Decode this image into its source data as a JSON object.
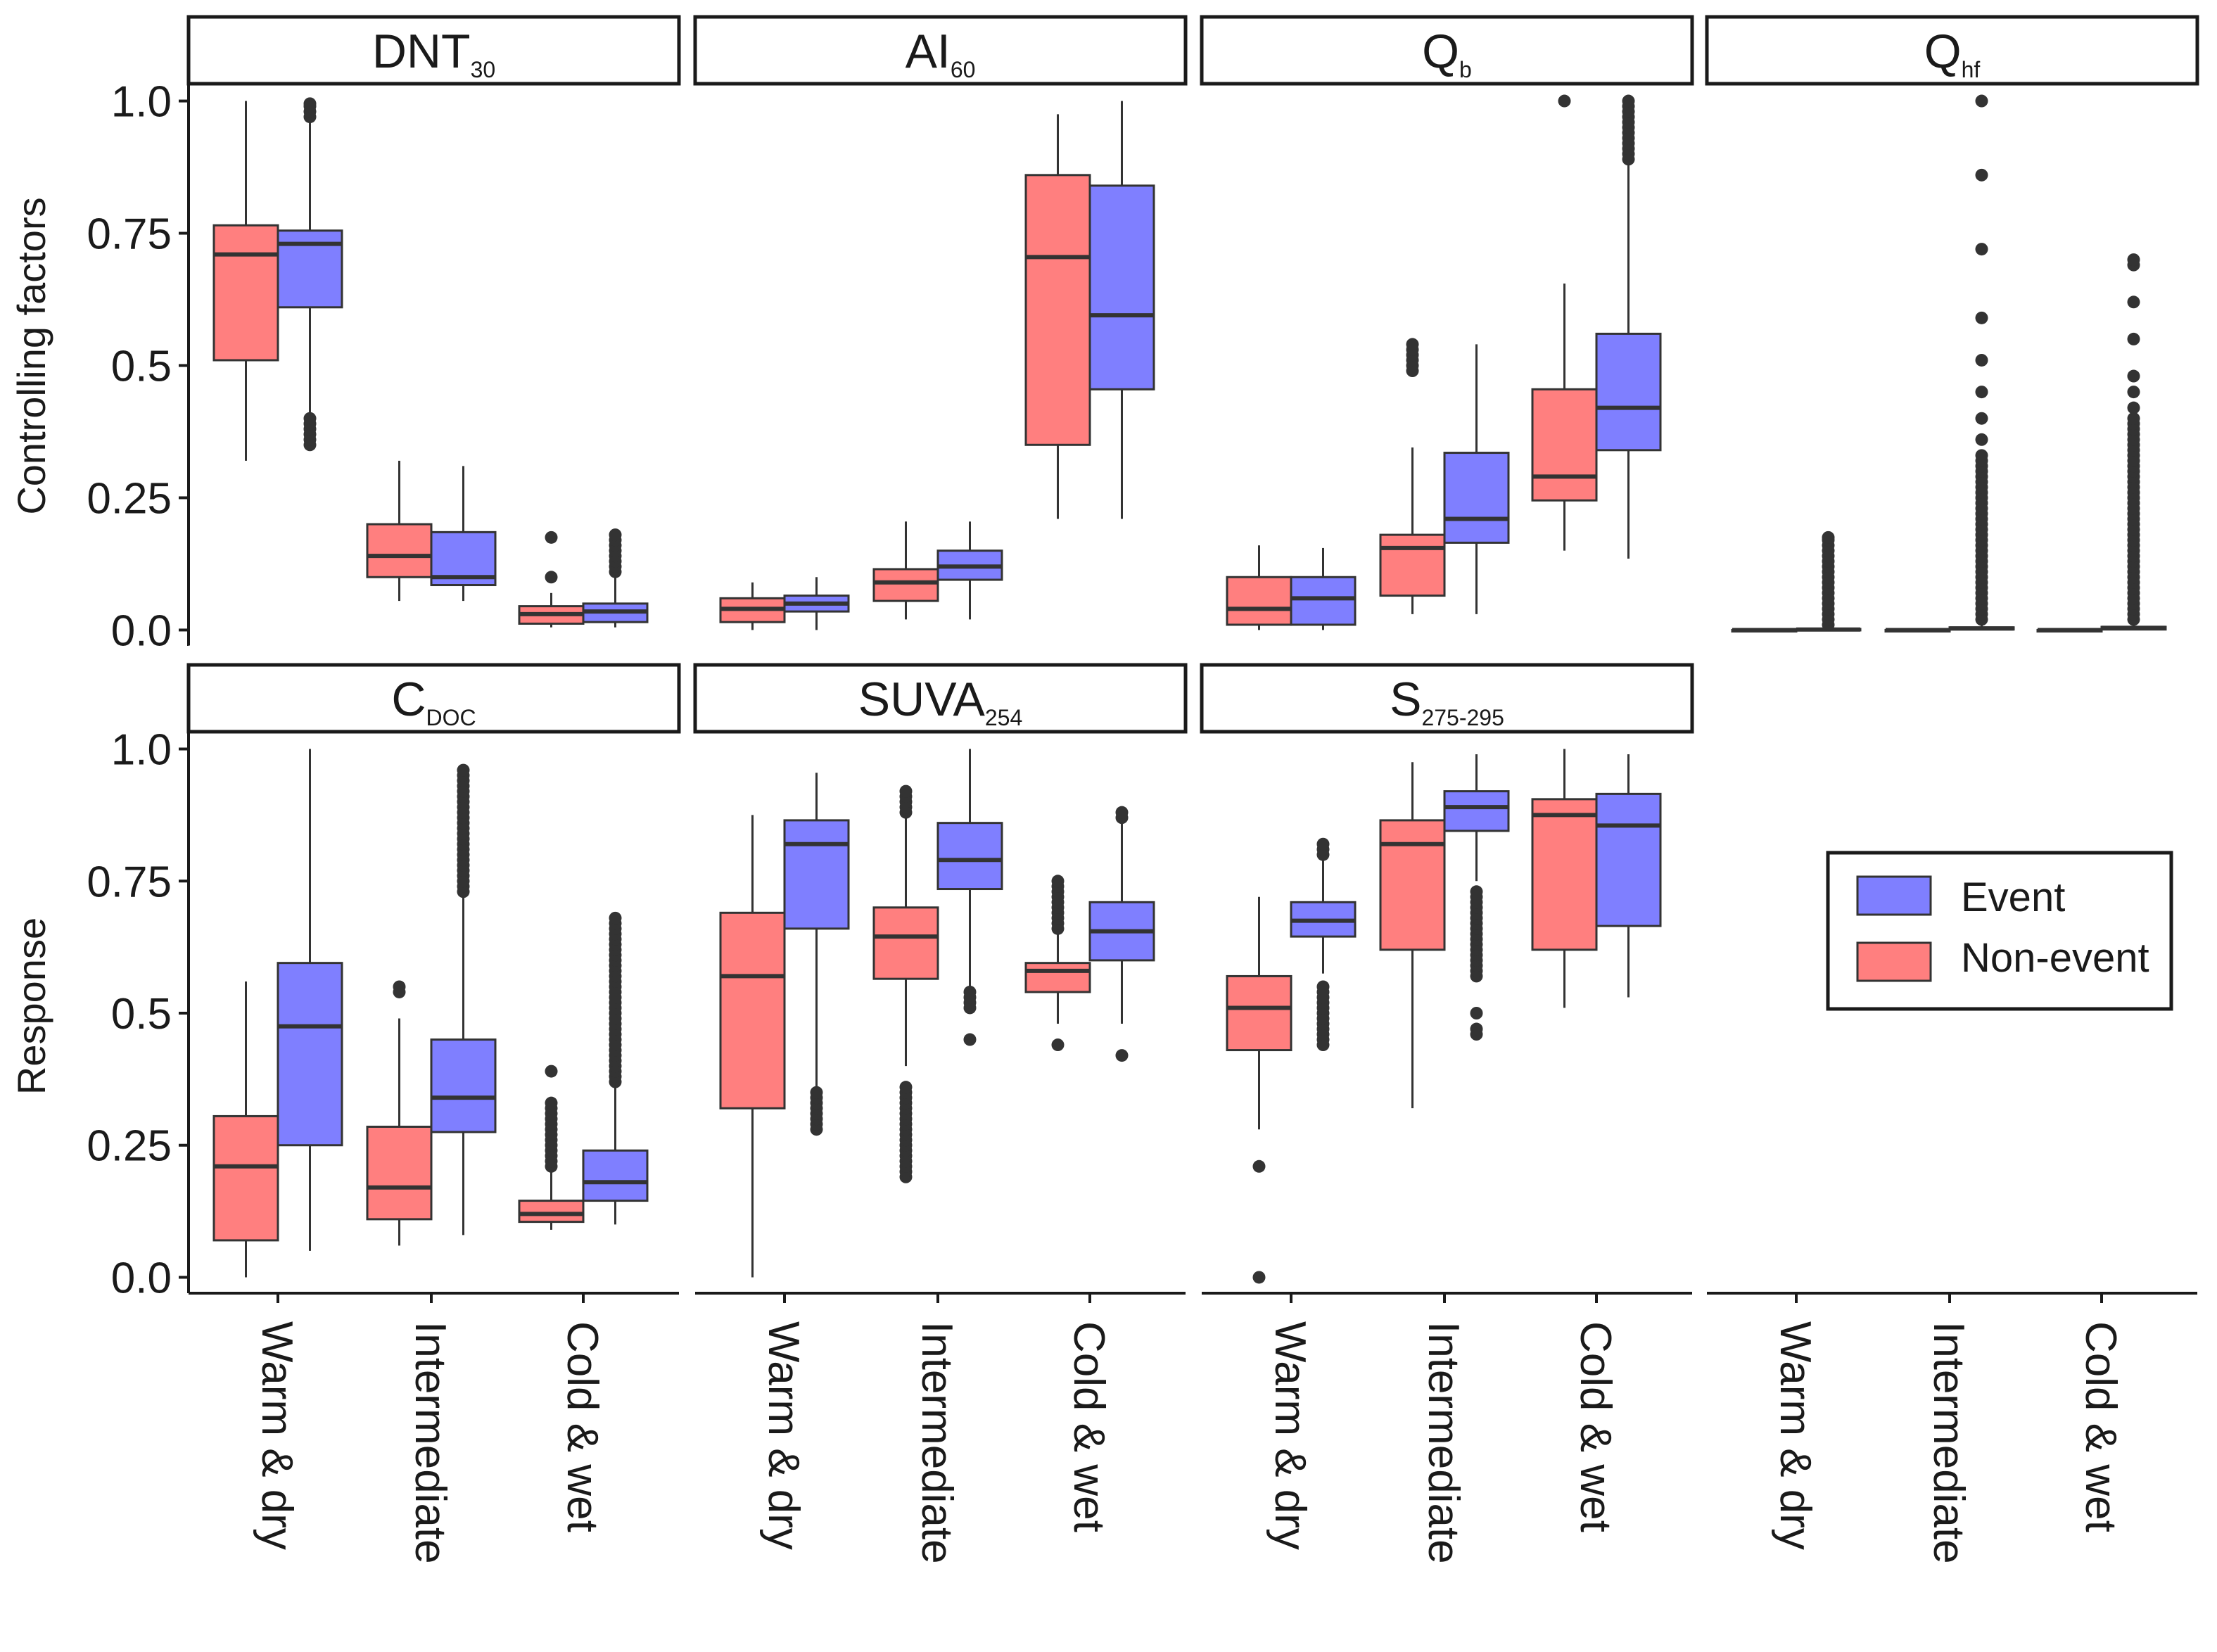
{
  "figure": {
    "row_labels": [
      "Controlling factors",
      "Response"
    ],
    "legend": [
      {
        "label": "Event",
        "color": "#7f7fff"
      },
      {
        "label": "Non-event",
        "color": "#ff7f7f"
      }
    ]
  },
  "chart_data": {
    "type": "box",
    "categories": [
      "Warm & dry",
      "Intermediate",
      "Cold & wet"
    ],
    "y_ticks": [
      "0.0",
      "0.25",
      "0.5",
      "0.75",
      "1.0"
    ],
    "ylim": [
      -0.03,
      1.03
    ],
    "series_colors": {
      "Non-event": "#ff7f7f",
      "Event": "#7f7fff"
    },
    "panels": [
      {
        "id": "dnt30",
        "strip_main": "DNT",
        "strip_sub": "30",
        "row": 0,
        "col": 0,
        "boxes": [
          {
            "category": "Warm & dry",
            "series": "Non-event",
            "min": 0.32,
            "q1": 0.51,
            "median": 0.71,
            "q3": 0.765,
            "max": 1.0,
            "outliers": []
          },
          {
            "category": "Warm & dry",
            "series": "Event",
            "min": 0.35,
            "q1": 0.61,
            "median": 0.73,
            "q3": 0.755,
            "max": 0.995,
            "outliers": [
              0.35,
              0.36,
              0.37,
              0.38,
              0.39,
              0.4,
              0.97,
              0.98,
              0.99,
              0.995
            ]
          },
          {
            "category": "Intermediate",
            "series": "Non-event",
            "min": 0.055,
            "q1": 0.1,
            "median": 0.14,
            "q3": 0.2,
            "max": 0.32,
            "outliers": []
          },
          {
            "category": "Intermediate",
            "series": "Event",
            "min": 0.055,
            "q1": 0.085,
            "median": 0.1,
            "q3": 0.185,
            "max": 0.31,
            "outliers": []
          },
          {
            "category": "Cold & wet",
            "series": "Non-event",
            "min": 0.005,
            "q1": 0.012,
            "median": 0.03,
            "q3": 0.045,
            "max": 0.07,
            "outliers": [
              0.1,
              0.175
            ]
          },
          {
            "category": "Cold & wet",
            "series": "Event",
            "min": 0.005,
            "q1": 0.015,
            "median": 0.035,
            "q3": 0.05,
            "max": 0.1,
            "outliers": [
              0.11,
              0.12,
              0.13,
              0.14,
              0.15,
              0.16,
              0.17,
              0.18
            ]
          }
        ]
      },
      {
        "id": "ai60",
        "strip_main": "AI",
        "strip_sub": "60",
        "row": 0,
        "col": 1,
        "boxes": [
          {
            "category": "Warm & dry",
            "series": "Non-event",
            "min": 0.0,
            "q1": 0.015,
            "median": 0.04,
            "q3": 0.06,
            "max": 0.09,
            "outliers": []
          },
          {
            "category": "Warm & dry",
            "series": "Event",
            "min": 0.0,
            "q1": 0.035,
            "median": 0.05,
            "q3": 0.065,
            "max": 0.1,
            "outliers": []
          },
          {
            "category": "Intermediate",
            "series": "Non-event",
            "min": 0.02,
            "q1": 0.055,
            "median": 0.09,
            "q3": 0.115,
            "max": 0.205,
            "outliers": []
          },
          {
            "category": "Intermediate",
            "series": "Event",
            "min": 0.02,
            "q1": 0.095,
            "median": 0.12,
            "q3": 0.15,
            "max": 0.205,
            "outliers": []
          },
          {
            "category": "Cold & wet",
            "series": "Non-event",
            "min": 0.21,
            "q1": 0.35,
            "median": 0.705,
            "q3": 0.86,
            "max": 0.975,
            "outliers": []
          },
          {
            "category": "Cold & wet",
            "series": "Event",
            "min": 0.21,
            "q1": 0.455,
            "median": 0.595,
            "q3": 0.84,
            "max": 1.0,
            "outliers": []
          }
        ]
      },
      {
        "id": "qb",
        "strip_main": "Q",
        "strip_sub": "b",
        "row": 0,
        "col": 2,
        "boxes": [
          {
            "category": "Warm & dry",
            "series": "Non-event",
            "min": 0.0,
            "q1": 0.01,
            "median": 0.04,
            "q3": 0.1,
            "max": 0.16,
            "outliers": []
          },
          {
            "category": "Warm & dry",
            "series": "Event",
            "min": 0.0,
            "q1": 0.01,
            "median": 0.06,
            "q3": 0.1,
            "max": 0.155,
            "outliers": []
          },
          {
            "category": "Intermediate",
            "series": "Non-event",
            "min": 0.03,
            "q1": 0.065,
            "median": 0.155,
            "q3": 0.18,
            "max": 0.345,
            "outliers": [
              0.49,
              0.5,
              0.51,
              0.52,
              0.53,
              0.54
            ]
          },
          {
            "category": "Intermediate",
            "series": "Event",
            "min": 0.03,
            "q1": 0.165,
            "median": 0.21,
            "q3": 0.335,
            "max": 0.54,
            "outliers": []
          },
          {
            "category": "Cold & wet",
            "series": "Non-event",
            "min": 0.15,
            "q1": 0.245,
            "median": 0.29,
            "q3": 0.455,
            "max": 0.655,
            "outliers": [
              1.0
            ]
          },
          {
            "category": "Cold & wet",
            "series": "Event",
            "min": 0.135,
            "q1": 0.34,
            "median": 0.42,
            "q3": 0.56,
            "max": 0.88,
            "outliers": [
              0.89,
              0.9,
              0.91,
              0.92,
              0.93,
              0.94,
              0.95,
              0.96,
              0.97,
              0.98,
              0.99,
              1.0
            ]
          }
        ]
      },
      {
        "id": "qhf",
        "strip_main": "Q",
        "strip_sub": "hf",
        "row": 0,
        "col": 3,
        "boxes": [
          {
            "category": "Warm & dry",
            "series": "Non-event",
            "min": 0.0,
            "q1": 0.0,
            "median": 0.0,
            "q3": 0.0,
            "max": 0.0,
            "outliers": []
          },
          {
            "category": "Warm & dry",
            "series": "Event",
            "min": 0.0,
            "q1": 0.0,
            "median": 0.001,
            "q3": 0.002,
            "max": 0.005,
            "outliers": [
              0.01,
              0.02,
              0.03,
              0.04,
              0.05,
              0.06,
              0.07,
              0.08,
              0.09,
              0.1,
              0.11,
              0.12,
              0.13,
              0.14,
              0.15,
              0.16,
              0.17,
              0.175
            ]
          },
          {
            "category": "Intermediate",
            "series": "Non-event",
            "min": 0.0,
            "q1": 0.0,
            "median": 0.0,
            "q3": 0.0,
            "max": 0.0,
            "outliers": []
          },
          {
            "category": "Intermediate",
            "series": "Event",
            "min": 0.0,
            "q1": 0.001,
            "median": 0.003,
            "q3": 0.005,
            "max": 0.01,
            "outliers": [
              0.02,
              0.03,
              0.04,
              0.05,
              0.06,
              0.07,
              0.08,
              0.09,
              0.1,
              0.11,
              0.12,
              0.13,
              0.14,
              0.15,
              0.16,
              0.17,
              0.18,
              0.19,
              0.2,
              0.21,
              0.22,
              0.23,
              0.24,
              0.25,
              0.26,
              0.27,
              0.28,
              0.29,
              0.3,
              0.31,
              0.32,
              0.33,
              0.36,
              0.4,
              0.45,
              0.51,
              0.59,
              0.72,
              0.86,
              1.0
            ]
          },
          {
            "category": "Cold & wet",
            "series": "Non-event",
            "min": 0.0,
            "q1": 0.0,
            "median": 0.0,
            "q3": 0.0,
            "max": 0.0,
            "outliers": []
          },
          {
            "category": "Cold & wet",
            "series": "Event",
            "min": 0.0,
            "q1": 0.001,
            "median": 0.004,
            "q3": 0.006,
            "max": 0.012,
            "outliers": [
              0.02,
              0.03,
              0.04,
              0.05,
              0.06,
              0.07,
              0.08,
              0.09,
              0.1,
              0.11,
              0.12,
              0.13,
              0.14,
              0.15,
              0.16,
              0.17,
              0.18,
              0.19,
              0.2,
              0.21,
              0.22,
              0.23,
              0.24,
              0.25,
              0.26,
              0.27,
              0.28,
              0.29,
              0.3,
              0.31,
              0.32,
              0.33,
              0.34,
              0.35,
              0.36,
              0.37,
              0.38,
              0.39,
              0.4,
              0.42,
              0.45,
              0.48,
              0.55,
              0.62,
              0.69,
              0.7
            ]
          }
        ]
      },
      {
        "id": "cdoc",
        "strip_main": "C",
        "strip_sub": "DOC",
        "row": 1,
        "col": 0,
        "boxes": [
          {
            "category": "Warm & dry",
            "series": "Non-event",
            "min": 0.0,
            "q1": 0.07,
            "median": 0.21,
            "q3": 0.305,
            "max": 0.56,
            "outliers": []
          },
          {
            "category": "Warm & dry",
            "series": "Event",
            "min": 0.05,
            "q1": 0.25,
            "median": 0.475,
            "q3": 0.595,
            "max": 1.0,
            "outliers": []
          },
          {
            "category": "Intermediate",
            "series": "Non-event",
            "min": 0.06,
            "q1": 0.11,
            "median": 0.17,
            "q3": 0.285,
            "max": 0.49,
            "outliers": [
              0.54,
              0.55
            ]
          },
          {
            "category": "Intermediate",
            "series": "Event",
            "min": 0.08,
            "q1": 0.275,
            "median": 0.34,
            "q3": 0.45,
            "max": 0.72,
            "outliers": [
              0.73,
              0.74,
              0.75,
              0.76,
              0.77,
              0.78,
              0.79,
              0.8,
              0.81,
              0.82,
              0.83,
              0.84,
              0.85,
              0.86,
              0.87,
              0.88,
              0.89,
              0.9,
              0.91,
              0.92,
              0.93,
              0.94,
              0.95,
              0.96
            ]
          },
          {
            "category": "Cold & wet",
            "series": "Non-event",
            "min": 0.09,
            "q1": 0.105,
            "median": 0.12,
            "q3": 0.145,
            "max": 0.2,
            "outliers": [
              0.21,
              0.22,
              0.23,
              0.24,
              0.25,
              0.26,
              0.27,
              0.28,
              0.29,
              0.3,
              0.31,
              0.32,
              0.33,
              0.39
            ]
          },
          {
            "category": "Cold & wet",
            "series": "Event",
            "min": 0.1,
            "q1": 0.145,
            "median": 0.18,
            "q3": 0.24,
            "max": 0.36,
            "outliers": [
              0.37,
              0.38,
              0.39,
              0.4,
              0.41,
              0.42,
              0.43,
              0.44,
              0.45,
              0.46,
              0.47,
              0.48,
              0.49,
              0.5,
              0.51,
              0.52,
              0.53,
              0.54,
              0.55,
              0.56,
              0.57,
              0.58,
              0.59,
              0.6,
              0.61,
              0.62,
              0.63,
              0.64,
              0.65,
              0.66,
              0.67,
              0.68
            ]
          }
        ]
      },
      {
        "id": "suva254",
        "strip_main": "SUVA",
        "strip_sub": "254",
        "row": 1,
        "col": 1,
        "boxes": [
          {
            "category": "Warm & dry",
            "series": "Non-event",
            "min": 0.0,
            "q1": 0.32,
            "median": 0.57,
            "q3": 0.69,
            "max": 0.875,
            "outliers": []
          },
          {
            "category": "Warm & dry",
            "series": "Event",
            "min": 0.36,
            "q1": 0.66,
            "median": 0.82,
            "q3": 0.865,
            "max": 0.955,
            "outliers": [
              0.28,
              0.29,
              0.3,
              0.31,
              0.32,
              0.33,
              0.34,
              0.35
            ]
          },
          {
            "category": "Intermediate",
            "series": "Non-event",
            "min": 0.4,
            "q1": 0.565,
            "median": 0.645,
            "q3": 0.7,
            "max": 0.87,
            "outliers": [
              0.19,
              0.2,
              0.21,
              0.22,
              0.23,
              0.24,
              0.25,
              0.26,
              0.27,
              0.28,
              0.29,
              0.3,
              0.31,
              0.32,
              0.33,
              0.34,
              0.35,
              0.36,
              0.88,
              0.89,
              0.9,
              0.91,
              0.92
            ]
          },
          {
            "category": "Intermediate",
            "series": "Event",
            "min": 0.545,
            "q1": 0.735,
            "median": 0.79,
            "q3": 0.86,
            "max": 1.0,
            "outliers": [
              0.45,
              0.51,
              0.52,
              0.53,
              0.54
            ]
          },
          {
            "category": "Cold & wet",
            "series": "Non-event",
            "min": 0.48,
            "q1": 0.54,
            "median": 0.58,
            "q3": 0.595,
            "max": 0.65,
            "outliers": [
              0.44,
              0.66,
              0.67,
              0.68,
              0.69,
              0.7,
              0.71,
              0.72,
              0.73,
              0.74,
              0.75
            ]
          },
          {
            "category": "Cold & wet",
            "series": "Event",
            "min": 0.48,
            "q1": 0.6,
            "median": 0.655,
            "q3": 0.71,
            "max": 0.86,
            "outliers": [
              0.42,
              0.87,
              0.88
            ]
          }
        ]
      },
      {
        "id": "s275295",
        "strip_main": "S",
        "strip_sub": "275-295",
        "row": 1,
        "col": 2,
        "boxes": [
          {
            "category": "Warm & dry",
            "series": "Non-event",
            "min": 0.28,
            "q1": 0.43,
            "median": 0.51,
            "q3": 0.57,
            "max": 0.72,
            "outliers": [
              0.0,
              0.21
            ]
          },
          {
            "category": "Warm & dry",
            "series": "Event",
            "min": 0.575,
            "q1": 0.645,
            "median": 0.675,
            "q3": 0.71,
            "max": 0.79,
            "outliers": [
              0.44,
              0.45,
              0.46,
              0.47,
              0.48,
              0.49,
              0.5,
              0.51,
              0.52,
              0.53,
              0.54,
              0.55,
              0.8,
              0.81,
              0.82
            ]
          },
          {
            "category": "Intermediate",
            "series": "Non-event",
            "min": 0.32,
            "q1": 0.62,
            "median": 0.82,
            "q3": 0.865,
            "max": 0.975,
            "outliers": []
          },
          {
            "category": "Intermediate",
            "series": "Event",
            "min": 0.75,
            "q1": 0.845,
            "median": 0.89,
            "q3": 0.92,
            "max": 0.99,
            "outliers": [
              0.46,
              0.47,
              0.5,
              0.57,
              0.58,
              0.59,
              0.6,
              0.61,
              0.62,
              0.63,
              0.64,
              0.65,
              0.66,
              0.67,
              0.68,
              0.69,
              0.7,
              0.71,
              0.72,
              0.73
            ]
          },
          {
            "category": "Cold & wet",
            "series": "Non-event",
            "min": 0.51,
            "q1": 0.62,
            "median": 0.875,
            "q3": 0.905,
            "max": 1.0,
            "outliers": []
          },
          {
            "category": "Cold & wet",
            "series": "Event",
            "min": 0.53,
            "q1": 0.665,
            "median": 0.855,
            "q3": 0.915,
            "max": 0.99,
            "outliers": []
          }
        ]
      }
    ]
  }
}
